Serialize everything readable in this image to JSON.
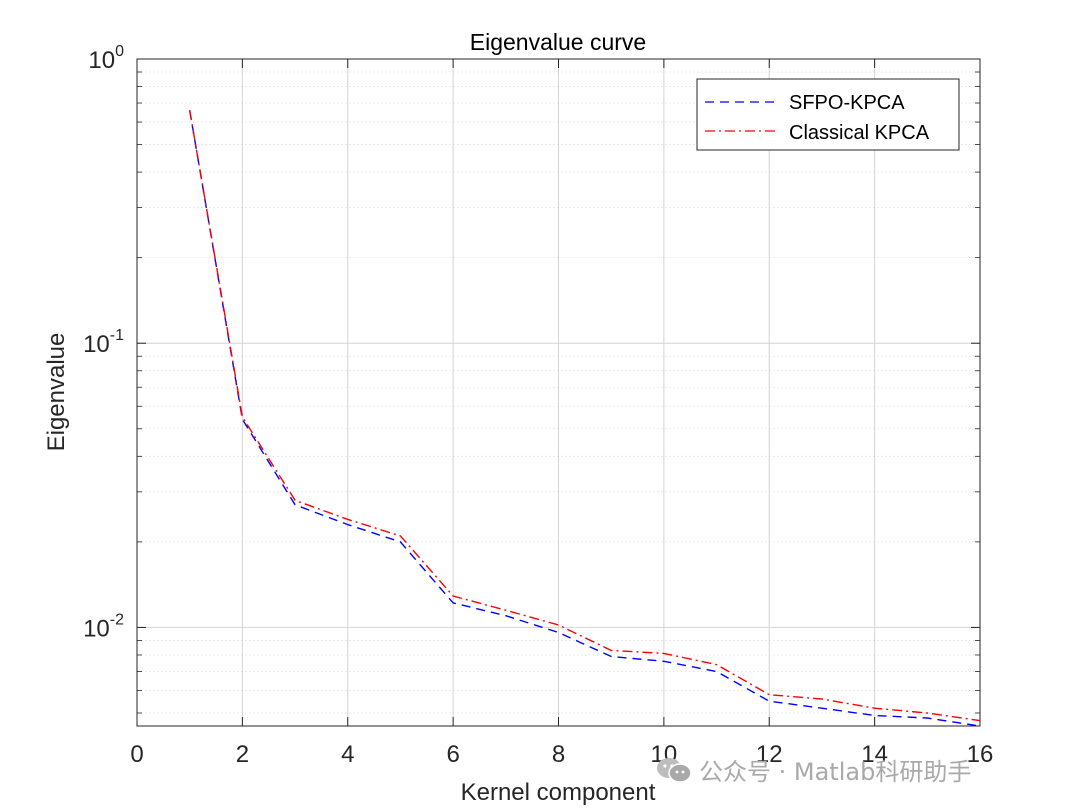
{
  "chart_data": {
    "type": "line",
    "title": "Eigenvalue curve",
    "xlabel": "Kernel component",
    "ylabel": "Eigenvalue",
    "xlim": [
      0,
      16
    ],
    "ylim": [
      0.0045,
      1
    ],
    "yscale": "log",
    "grid": true,
    "legend_position": "top-right",
    "x_ticks": [
      "0",
      "2",
      "4",
      "6",
      "8",
      "10",
      "12",
      "14",
      "16"
    ],
    "y_ticks": [
      {
        "base": "10",
        "exp": "0"
      },
      {
        "base": "10",
        "exp": "-1"
      },
      {
        "base": "10",
        "exp": "-2"
      }
    ],
    "x": [
      1,
      2,
      3,
      4,
      5,
      6,
      7,
      8,
      9,
      10,
      11,
      12,
      13,
      14,
      15,
      16
    ],
    "series": [
      {
        "name": "SFPO-KPCA",
        "color": "#0000ff",
        "style": "dashed",
        "values": [
          0.66,
          0.054,
          0.027,
          0.023,
          0.02,
          0.0122,
          0.011,
          0.0096,
          0.0079,
          0.0076,
          0.007,
          0.0055,
          0.0052,
          0.0049,
          0.0048,
          0.0045
        ]
      },
      {
        "name": "Classical KPCA",
        "color": "#ff0000",
        "style": "dashdot",
        "values": [
          0.66,
          0.055,
          0.028,
          0.024,
          0.021,
          0.0129,
          0.0115,
          0.0102,
          0.0083,
          0.0081,
          0.0074,
          0.0058,
          0.0056,
          0.0052,
          0.005,
          0.0047
        ]
      }
    ]
  },
  "watermark": {
    "text": "公众号 · Matlab科研助手",
    "icon": "wechat-icon"
  }
}
